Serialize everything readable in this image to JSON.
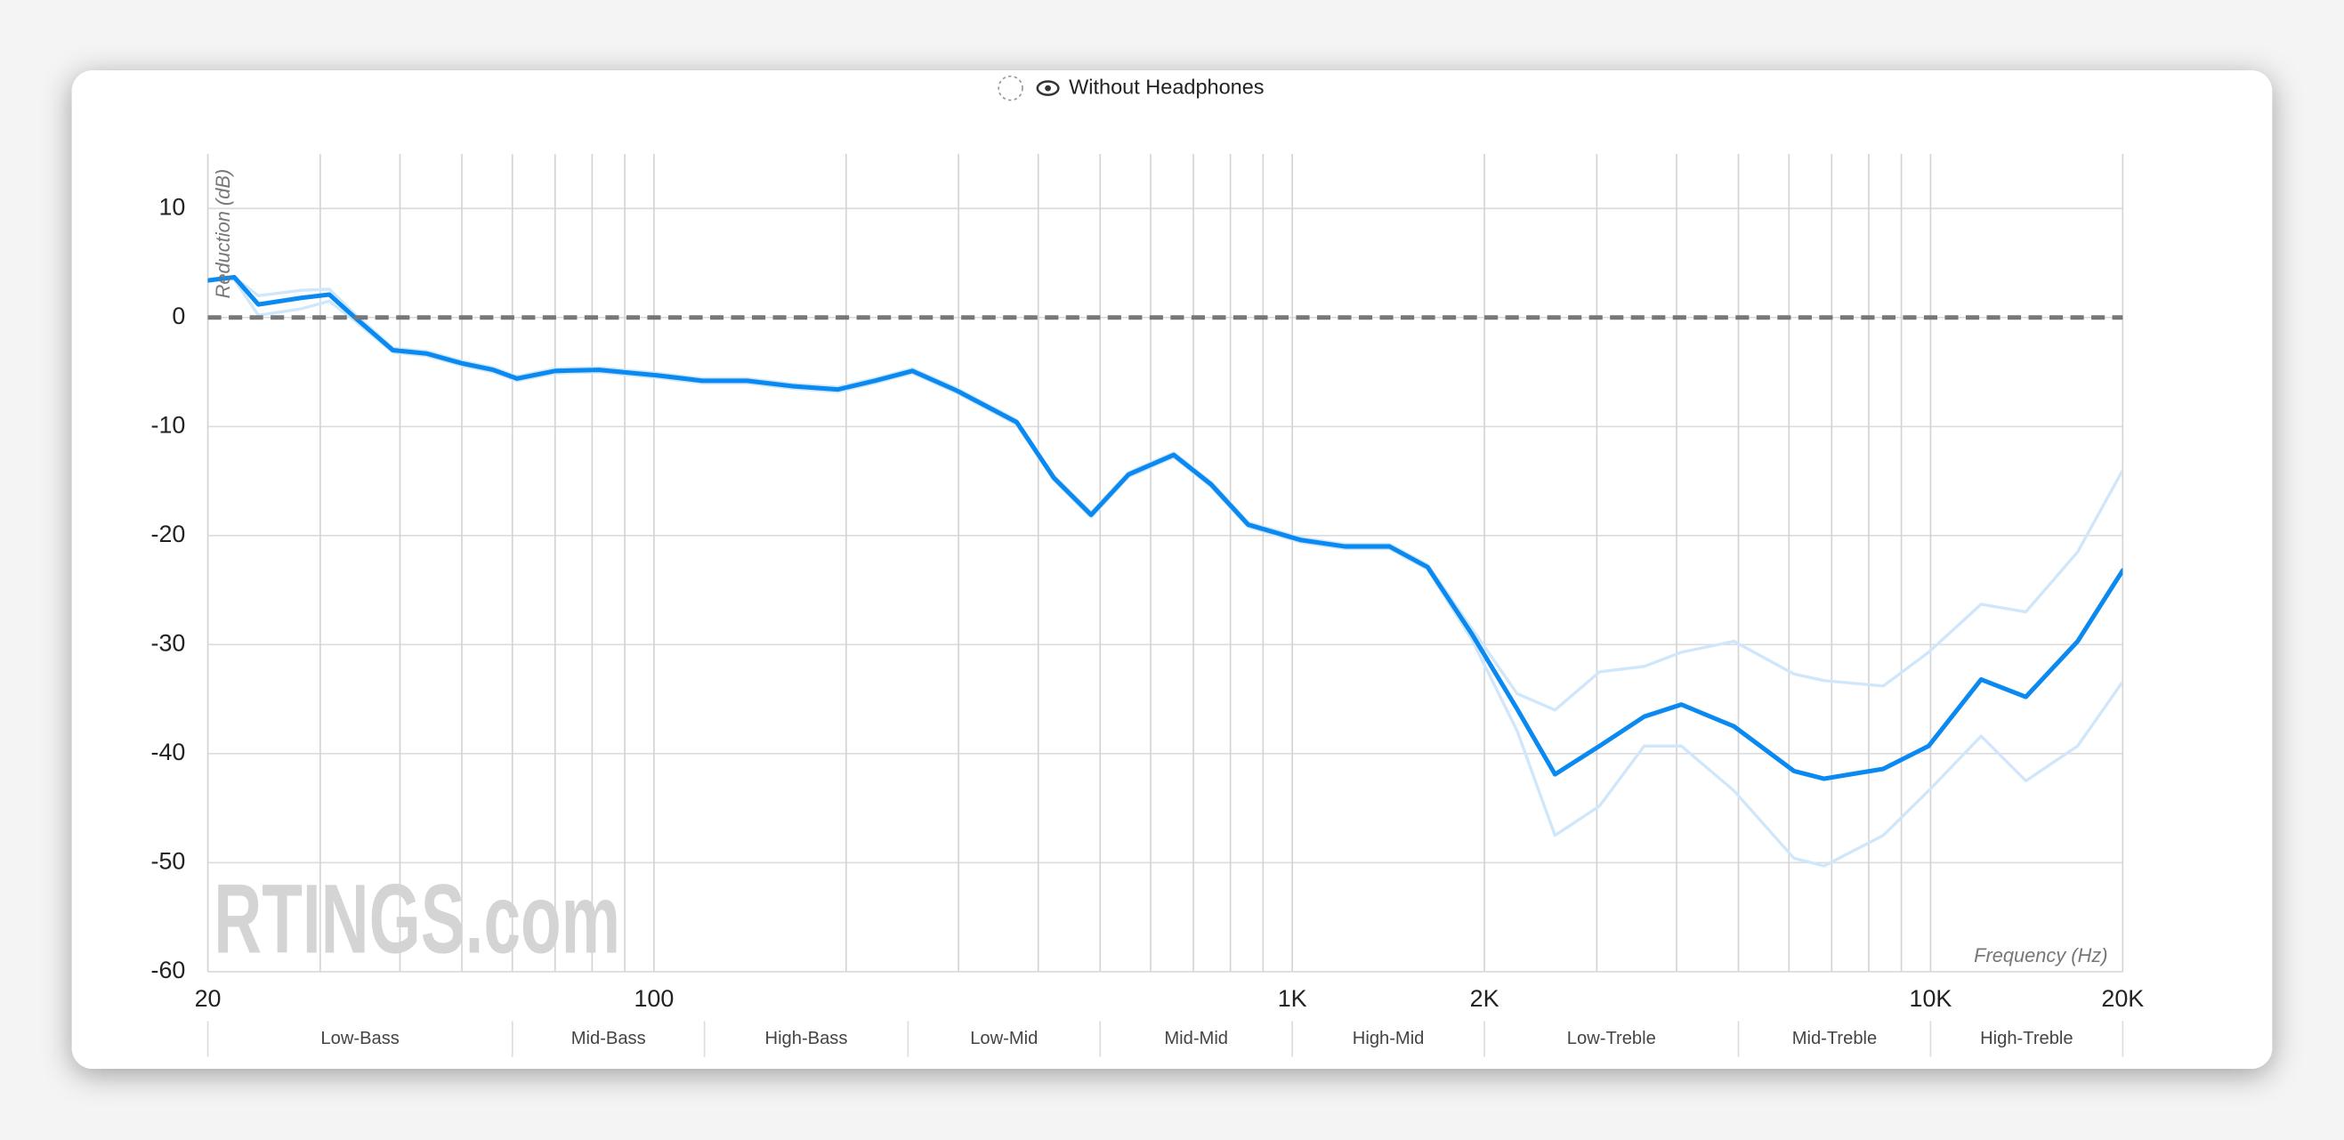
{
  "chart_data": {
    "type": "line",
    "legend": "Without Headphones",
    "y_label": "Reduction (dB)",
    "x_label": "Frequency (Hz)",
    "watermark": "RTINGS.com",
    "log_x": true,
    "grid": true,
    "xlim": [
      20,
      20000
    ],
    "ylim": [
      -60,
      15
    ],
    "yticks": [
      10,
      0,
      -10,
      -20,
      -30,
      -40,
      -50,
      -60
    ],
    "xticks": [
      20,
      100,
      {
        "value": 1000,
        "label": "1K"
      },
      {
        "value": 2000,
        "label": "2K"
      },
      {
        "value": 10000,
        "label": "10K"
      },
      {
        "value": 20000,
        "label": "20K"
      }
    ],
    "xgrid": [
      30,
      40,
      50,
      60,
      70,
      80,
      90,
      200,
      300,
      400,
      500,
      600,
      700,
      800,
      900,
      3000,
      4000,
      5000,
      6000,
      7000,
      8000,
      9000
    ],
    "bands": [
      "Low-Bass",
      "Mid-Bass",
      "High-Bass",
      "Low-Mid",
      "Mid-Mid",
      "High-Mid",
      "Low-Treble",
      "Mid-Treble",
      "High-Treble"
    ],
    "band_edges": [
      20,
      60,
      120,
      250,
      500,
      1000,
      2000,
      5000,
      10000,
      20000
    ],
    "reference": {
      "name": "Without Headphones",
      "value": 0,
      "color": "#777777"
    },
    "x": [
      20,
      22,
      24,
      28,
      31,
      34,
      39,
      44,
      50,
      56,
      61,
      70,
      82,
      101,
      119,
      140,
      165,
      194,
      222,
      254,
      298,
      370,
      423,
      484,
      554,
      652,
      746,
      853,
      1030,
      1210,
      1420,
      1630,
      1910,
      2250,
      2580,
      3030,
      3560,
      4070,
      4920,
      6110,
      6810,
      8430,
      9930,
      12000,
      14100,
      17000,
      20000
    ],
    "series": [
      {
        "color": "#cfe6fb",
        "values": [
          3.4,
          3.7,
          2.0,
          2.5,
          2.6,
          0.3,
          -2.8,
          -3.1,
          -4.0,
          -4.6,
          -5.4,
          -4.7,
          -4.6,
          -5.1,
          -5.6,
          -5.6,
          -6.1,
          -6.4,
          -5.6,
          -4.7,
          -6.5,
          -9.4,
          -14.5,
          -17.9,
          -14.2,
          -12.4,
          -15.1,
          -18.8,
          -20.2,
          -20.8,
          -20.8,
          -22.7,
          -28.5,
          -34.5,
          -36,
          -32.5,
          -32,
          -30.7,
          -29.7,
          -32.7,
          -33.3,
          -33.8,
          -30.7,
          -26.3,
          -27,
          -21.5,
          -14
        ]
      },
      {
        "color": "#cfe6fb",
        "values": [
          3.4,
          3.5,
          0.2,
          0.8,
          1.5,
          -0.3,
          -3.2,
          -3.5,
          -4.4,
          -5.0,
          -5.8,
          -5.1,
          -5.0,
          -5.5,
          -6.0,
          -6.0,
          -6.5,
          -6.8,
          -6.0,
          -5.1,
          -6.9,
          -9.8,
          -14.9,
          -18.3,
          -14.6,
          -12.8,
          -15.5,
          -19.2,
          -20.6,
          -21.2,
          -21.2,
          -23.1,
          -29.5,
          -37.9,
          -47.5,
          -44.8,
          -39.3,
          -39.3,
          -43.4,
          -49.6,
          -50.3,
          -47.5,
          -43.4,
          -38.4,
          -42.5,
          -39.3,
          -33.4
        ]
      },
      {
        "color": "#0a8af0",
        "values": [
          3.4,
          3.7,
          1.2,
          1.8,
          2.1,
          0,
          -3.0,
          -3.3,
          -4.2,
          -4.8,
          -5.6,
          -4.9,
          -4.8,
          -5.3,
          -5.8,
          -5.8,
          -6.3,
          -6.6,
          -5.8,
          -4.9,
          -6.7,
          -9.6,
          -14.7,
          -18.1,
          -14.4,
          -12.6,
          -15.3,
          -19,
          -20.4,
          -21,
          -21,
          -22.9,
          -29,
          -35.9,
          -41.9,
          -39.3,
          -36.6,
          -35.5,
          -37.5,
          -41.6,
          -42.3,
          -41.4,
          -39.3,
          -33.2,
          -34.8,
          -29.7,
          -23.2
        ]
      }
    ]
  }
}
